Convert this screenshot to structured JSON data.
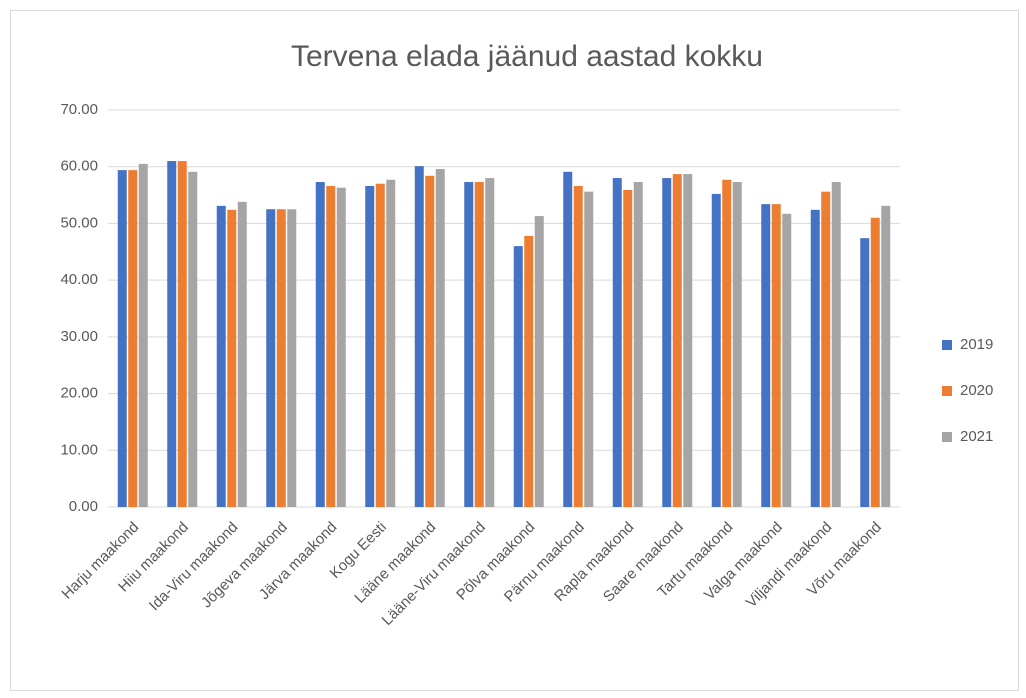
{
  "chart_data": {
    "type": "bar",
    "title": "Tervena elada jäänud aastad kokku",
    "categories": [
      "Harju maakond",
      "Hiiu maakond",
      "Ida-Viru maakond",
      "Jõgeva maakond",
      "Järva maakond",
      "Kogu Eesti",
      "Lääne maakond",
      "Lääne-Viru maakond",
      "Põlva maakond",
      "Pärnu maakond",
      "Rapla maakond",
      "Saare maakond",
      "Tartu maakond",
      "Valga maakond",
      "Viljandi maakond",
      "Võru maakond"
    ],
    "series": [
      {
        "name": "2019",
        "color": "#4472c4",
        "values": [
          59.4,
          61.0,
          53.1,
          52.5,
          57.3,
          56.6,
          60.1,
          57.3,
          46.0,
          59.1,
          58.0,
          58.0,
          55.2,
          53.4,
          52.4,
          47.4
        ]
      },
      {
        "name": "2020",
        "color": "#ed7d31",
        "values": [
          59.4,
          61.0,
          52.4,
          52.5,
          56.6,
          57.0,
          58.4,
          57.3,
          47.8,
          56.6,
          55.9,
          58.7,
          57.7,
          53.4,
          55.6,
          51.0
        ]
      },
      {
        "name": "2021",
        "color": "#a5a5a5",
        "values": [
          60.5,
          59.1,
          53.8,
          52.5,
          56.3,
          57.7,
          59.6,
          58.0,
          51.3,
          55.6,
          57.3,
          58.7,
          57.3,
          51.7,
          57.3,
          53.1
        ]
      }
    ],
    "ylim": [
      0,
      70
    ],
    "yticks": [
      {
        "value": 0,
        "label": "0.00"
      },
      {
        "value": 10,
        "label": "10.00"
      },
      {
        "value": 20,
        "label": "20.00"
      },
      {
        "value": 30,
        "label": "30.00"
      },
      {
        "value": 40,
        "label": "40.00"
      },
      {
        "value": 50,
        "label": "50.00"
      },
      {
        "value": 60,
        "label": "60.00"
      },
      {
        "value": 70,
        "label": "70.00"
      }
    ],
    "grid": true,
    "legend": "right"
  }
}
